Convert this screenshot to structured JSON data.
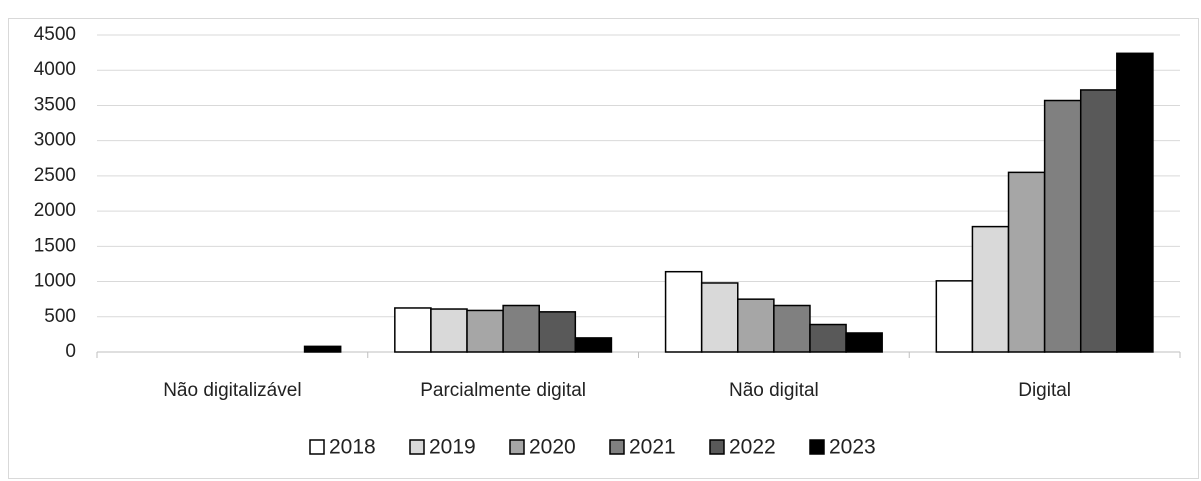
{
  "chart_data": {
    "type": "bar",
    "categories": [
      "Não digitalizável",
      "Parcialmente digital",
      "Não digital",
      "Digital"
    ],
    "series": [
      {
        "name": "2018",
        "color": "#ffffff",
        "values": [
          0,
          625,
          1140,
          1010
        ]
      },
      {
        "name": "2019",
        "color": "#d9d9d9",
        "values": [
          0,
          610,
          980,
          1780
        ]
      },
      {
        "name": "2020",
        "color": "#a6a6a6",
        "values": [
          0,
          590,
          750,
          2550
        ]
      },
      {
        "name": "2021",
        "color": "#808080",
        "values": [
          0,
          660,
          660,
          3570
        ]
      },
      {
        "name": "2022",
        "color": "#595959",
        "values": [
          0,
          570,
          390,
          3720
        ]
      },
      {
        "name": "2023",
        "color": "#000000",
        "values": [
          80,
          200,
          270,
          4240
        ]
      }
    ],
    "ylim": [
      0,
      4500
    ],
    "yticks": [
      0,
      500,
      1000,
      1500,
      2000,
      2500,
      3000,
      3500,
      4000,
      4500
    ],
    "grid": true,
    "legend": "bottom"
  }
}
